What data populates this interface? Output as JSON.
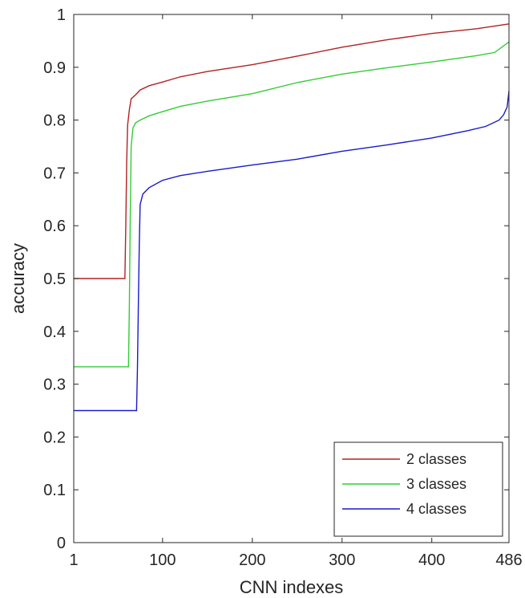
{
  "chart_data": {
    "type": "line",
    "title": "",
    "xlabel": "CNN indexes",
    "ylabel": "accuracy",
    "xlim": [
      1,
      486
    ],
    "ylim": [
      0,
      1
    ],
    "x_ticks": [
      1,
      100,
      200,
      300,
      400,
      486
    ],
    "y_ticks": [
      0,
      0.1,
      0.2,
      0.3,
      0.4,
      0.5,
      0.6,
      0.7,
      0.8,
      0.9,
      1
    ],
    "legend_position": "bottom-right",
    "grid": false,
    "series": [
      {
        "name": "2 classes",
        "color": "#b22222",
        "x": [
          1,
          58,
          59,
          60,
          61,
          63,
          65,
          70,
          75,
          85,
          100,
          120,
          150,
          200,
          250,
          300,
          350,
          400,
          450,
          486
        ],
        "y": [
          0.5,
          0.5,
          0.6,
          0.72,
          0.79,
          0.82,
          0.84,
          0.848,
          0.857,
          0.865,
          0.872,
          0.882,
          0.892,
          0.905,
          0.921,
          0.938,
          0.952,
          0.964,
          0.973,
          0.982
        ]
      },
      {
        "name": "3 classes",
        "color": "#33cc33",
        "x": [
          1,
          62,
          63,
          64,
          65,
          67,
          70,
          75,
          85,
          100,
          120,
          150,
          200,
          250,
          300,
          350,
          400,
          450,
          470,
          486
        ],
        "y": [
          0.333,
          0.333,
          0.45,
          0.62,
          0.75,
          0.785,
          0.795,
          0.8,
          0.808,
          0.816,
          0.826,
          0.836,
          0.85,
          0.871,
          0.887,
          0.899,
          0.91,
          0.922,
          0.928,
          0.948
        ]
      },
      {
        "name": "4 classes",
        "color": "#1a1acc",
        "x": [
          1,
          71,
          72,
          73,
          74,
          75,
          78,
          85,
          100,
          120,
          150,
          200,
          250,
          300,
          350,
          400,
          440,
          460,
          475,
          480,
          484,
          486
        ],
        "y": [
          0.25,
          0.25,
          0.33,
          0.45,
          0.56,
          0.64,
          0.66,
          0.672,
          0.686,
          0.695,
          0.703,
          0.715,
          0.726,
          0.741,
          0.753,
          0.766,
          0.78,
          0.788,
          0.8,
          0.81,
          0.825,
          0.855
        ]
      }
    ]
  }
}
